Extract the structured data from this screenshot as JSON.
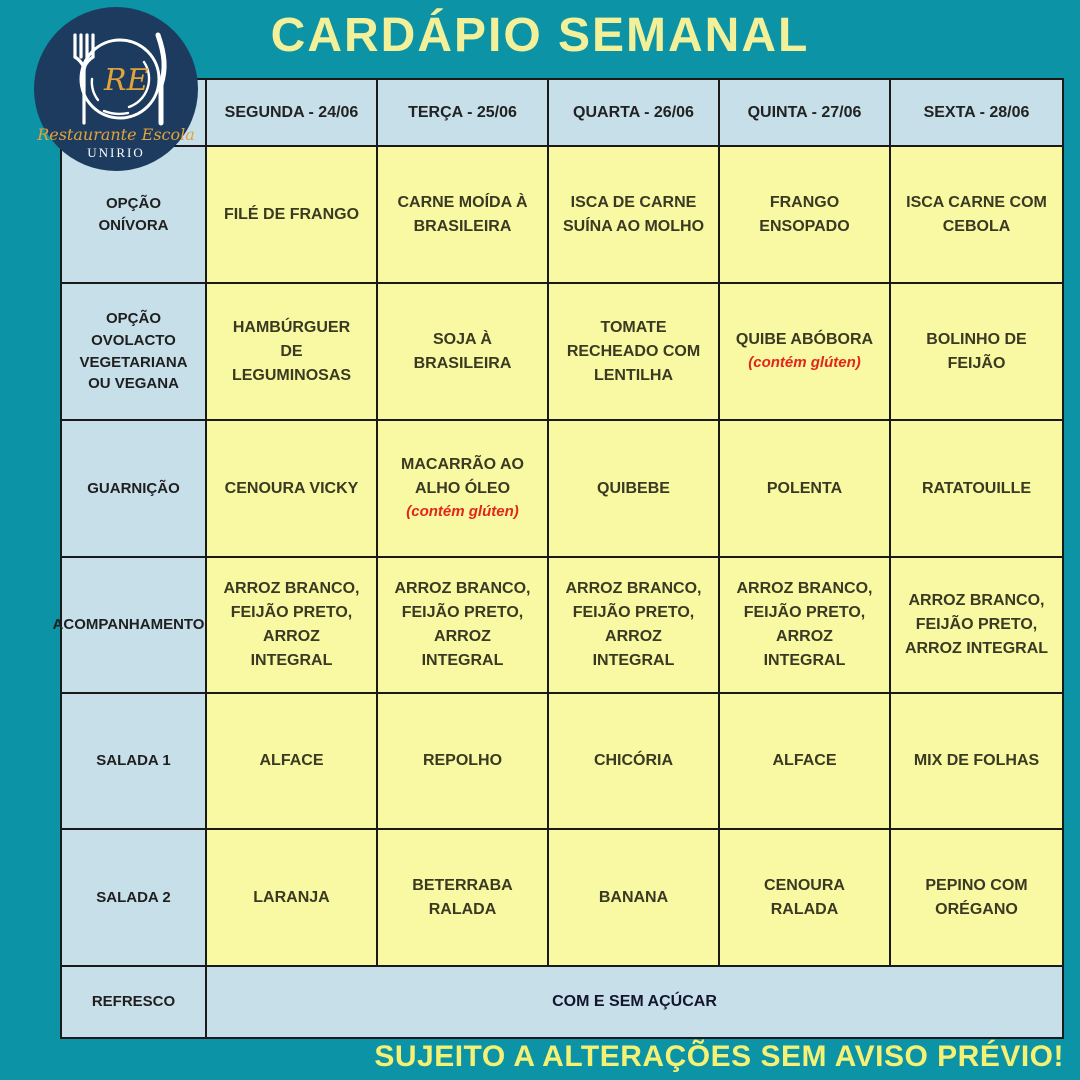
{
  "title": "CARDÁPIO SEMANAL",
  "footer_note": "SUJEITO A ALTERAÇÕES SEM AVISO PRÉVIO!",
  "logo": {
    "initials": "RE",
    "name": "Restaurante Escola",
    "org": "UNIRIO",
    "icon": "fork-plate-knife-icon"
  },
  "colors": {
    "background_teal": "#0c93a6",
    "header_blue": "#c7dfe9",
    "cell_yellow": "#f9f8a3",
    "logo_navy": "#1c3b5e",
    "title_yellow": "#f3f09a",
    "note_red": "#e2261a"
  },
  "table": {
    "day_headers": [
      "SEGUNDA - 24/06",
      "TERÇA - 25/06",
      "QUARTA - 26/06",
      "QUINTA - 27/06",
      "SEXTA - 28/06"
    ],
    "rows": [
      {
        "label": "OPÇÃO ONÍVORA",
        "cells": [
          {
            "text": "FILÉ DE FRANGO"
          },
          {
            "text": "CARNE MOÍDA À BRASILEIRA"
          },
          {
            "text": "ISCA DE CARNE SUÍNA AO MOLHO"
          },
          {
            "text": "FRANGO ENSOPADO"
          },
          {
            "text": "ISCA CARNE COM CEBOLA"
          }
        ]
      },
      {
        "label": "OPÇÃO OVOLACTO VEGETARIANA OU VEGANA",
        "cells": [
          {
            "text": "HAMBÚRGUER DE LEGUMINOSAS"
          },
          {
            "text": "SOJA À BRASILEIRA"
          },
          {
            "text": "TOMATE RECHEADO COM LENTILHA"
          },
          {
            "text": "QUIBE ABÓBORA",
            "note": "(contém glúten)"
          },
          {
            "text": "BOLINHO DE FEIJÃO"
          }
        ]
      },
      {
        "label": "GUARNIÇÃO",
        "cells": [
          {
            "text": "CENOURA VICKY"
          },
          {
            "text": "MACARRÃO AO ALHO ÓLEO",
            "note": "(contém glúten)"
          },
          {
            "text": "QUIBEBE"
          },
          {
            "text": "POLENTA"
          },
          {
            "text": "RATATOUILLE"
          }
        ]
      },
      {
        "label": "ACOMPANHAMENTOS",
        "cells": [
          {
            "text": "ARROZ BRANCO, FEIJÃO PRETO, ARROZ INTEGRAL"
          },
          {
            "text": "ARROZ BRANCO, FEIJÃO PRETO, ARROZ INTEGRAL"
          },
          {
            "text": "ARROZ BRANCO, FEIJÃO PRETO, ARROZ INTEGRAL"
          },
          {
            "text": "ARROZ BRANCO, FEIJÃO PRETO, ARROZ INTEGRAL"
          },
          {
            "text": "ARROZ BRANCO, FEIJÃO PRETO, ARROZ INTEGRAL"
          }
        ]
      },
      {
        "label": "SALADA 1",
        "cells": [
          {
            "text": "ALFACE"
          },
          {
            "text": "REPOLHO"
          },
          {
            "text": "CHICÓRIA"
          },
          {
            "text": "ALFACE"
          },
          {
            "text": "MIX DE FOLHAS"
          }
        ]
      },
      {
        "label": "SALADA 2",
        "cells": [
          {
            "text": "LARANJA"
          },
          {
            "text": "BETERRABA RALADA"
          },
          {
            "text": "BANANA"
          },
          {
            "text": "CENOURA RALADA"
          },
          {
            "text": "PEPINO COM ORÉGANO"
          }
        ]
      }
    ],
    "merged_row": {
      "label": "REFRESCO",
      "value": "COM E SEM AÇÚCAR"
    }
  }
}
